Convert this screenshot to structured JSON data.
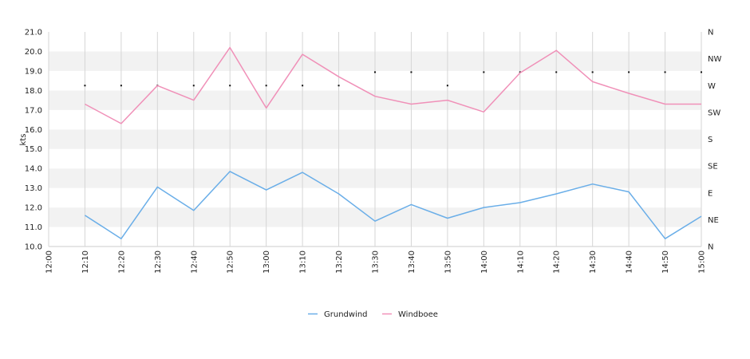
{
  "chart_data": {
    "type": "line",
    "ylabel": "kts",
    "ylim": [
      10,
      21
    ],
    "y_ticks": [
      "10.0",
      "11.0",
      "12.0",
      "13.0",
      "14.0",
      "15.0",
      "16.0",
      "17.0",
      "18.0",
      "19.0",
      "20.0",
      "21.0"
    ],
    "x_ticks": [
      "12:00",
      "12:10",
      "12:20",
      "12:30",
      "12:40",
      "12:50",
      "13:00",
      "13:10",
      "13:20",
      "13:30",
      "13:40",
      "13:50",
      "14:00",
      "14:10",
      "14:20",
      "14:30",
      "14:40",
      "14:50",
      "15:00"
    ],
    "x": [
      "12:10",
      "12:20",
      "12:30",
      "12:40",
      "12:50",
      "13:00",
      "13:10",
      "13:20",
      "13:30",
      "13:40",
      "13:50",
      "14:00",
      "14:10",
      "14:20",
      "14:30",
      "14:40",
      "14:50",
      "15:00"
    ],
    "direction_axis": {
      "labels": [
        "N",
        "NE",
        "E",
        "SE",
        "S",
        "SW",
        "W",
        "NW",
        "N"
      ],
      "range_deg": [
        0,
        360
      ]
    },
    "series": [
      {
        "name": "Grundwind",
        "color": "#6aaee8",
        "values": [
          11.6,
          10.4,
          13.05,
          11.85,
          13.85,
          12.9,
          13.8,
          12.7,
          11.3,
          12.15,
          11.45,
          12.0,
          12.25,
          12.7,
          13.2,
          12.8,
          10.4,
          11.55
        ]
      },
      {
        "name": "Windboee",
        "color": "#f090b8",
        "values": [
          17.3,
          16.3,
          18.25,
          17.5,
          20.2,
          17.1,
          19.85,
          18.7,
          17.7,
          17.3,
          17.5,
          16.9,
          18.9,
          20.05,
          18.45,
          17.85,
          17.3,
          17.3
        ]
      }
    ],
    "direction_points": [
      270,
      270,
      270,
      270,
      270,
      270,
      270,
      270,
      292.5,
      292.5,
      270,
      292.5,
      292.5,
      292.5,
      292.5,
      292.5,
      292.5,
      292.5
    ],
    "grid": true,
    "legend_position": "bottom-center"
  }
}
